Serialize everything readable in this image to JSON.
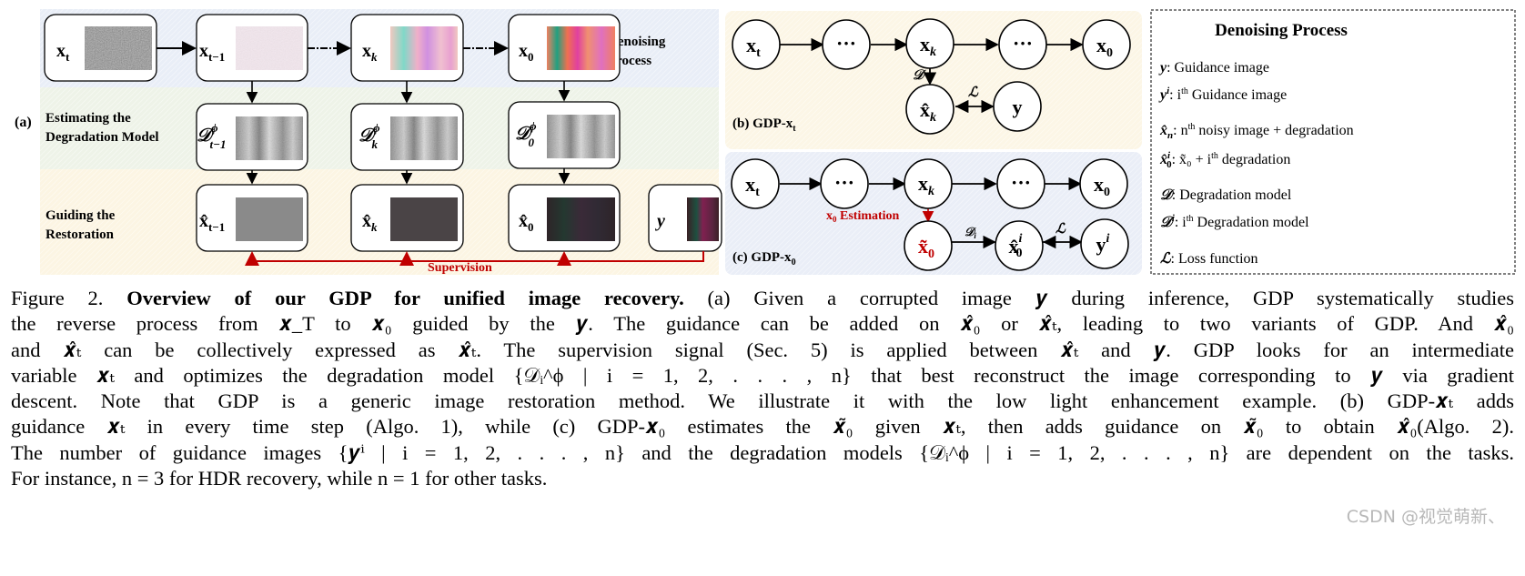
{
  "figure": {
    "panel_a": {
      "tag": "(a)",
      "row_labels": {
        "estimating": [
          "Estimating the",
          "Degradation Model"
        ],
        "guiding": [
          "Guiding the",
          "Restoration"
        ],
        "denoising": [
          "Denoising",
          "Process"
        ]
      },
      "top_row": [
        {
          "base": "x",
          "sub": "t"
        },
        {
          "base": "x",
          "sub": "t−1"
        },
        {
          "base": "x",
          "sub": "k"
        },
        {
          "base": "x",
          "sub": "0"
        }
      ],
      "middle_row": [
        {
          "base": "𝒟",
          "sup": "ϕ",
          "sub": "t−1"
        },
        {
          "base": "𝒟",
          "sup": "ϕ",
          "sub": "k"
        },
        {
          "base": "𝒟",
          "sup": "ϕ",
          "sub": "0"
        }
      ],
      "bottom_row": [
        {
          "base": "x̂",
          "sub": "t−1"
        },
        {
          "base": "x̂",
          "sub": "k"
        },
        {
          "base": "x̂",
          "sub": "0"
        },
        {
          "base": "y",
          "sub": ""
        }
      ],
      "supervision_label": "Supervision",
      "colors": {
        "supervision": "#c00000",
        "band_top": "#eef2f8",
        "band_mid": "#f1f5ec",
        "band_bottom": "#fdf7e8"
      }
    },
    "panel_b": {
      "tag": "(b) GDP-x",
      "tag_sub": "t",
      "nodes": [
        {
          "base": "x",
          "sub": "t"
        },
        {
          "base": "···",
          "sub": ""
        },
        {
          "base": "x",
          "sub": "k"
        },
        {
          "base": "···",
          "sub": ""
        },
        {
          "base": "x",
          "sub": "0"
        },
        {
          "base": "x̂",
          "sub": "k"
        },
        {
          "base": "y",
          "sub": ""
        }
      ],
      "edge_labels": {
        "degradation": "𝒟",
        "loss": "ℒ"
      }
    },
    "panel_c": {
      "tag": "(c) GDP-x",
      "tag_sub": "0",
      "nodes": [
        {
          "base": "x",
          "sub": "t"
        },
        {
          "base": "···",
          "sub": ""
        },
        {
          "base": "x",
          "sub": "k"
        },
        {
          "base": "···",
          "sub": ""
        },
        {
          "base": "x",
          "sub": "0"
        },
        {
          "base": "x̃",
          "sub": "0"
        },
        {
          "base": "x̂",
          "sub": "0",
          "sup": "i"
        },
        {
          "base": "y",
          "sup": "i"
        }
      ],
      "estimation_label": {
        "base": "x",
        "sub": "0",
        "rest": " Estimation"
      },
      "edge_labels": {
        "degradation": "𝒟",
        "degradation_sub": "i",
        "loss": "ℒ"
      },
      "colors": {
        "estimation": "#c00000"
      }
    },
    "legend": {
      "title": "Denoising Process",
      "items": [
        {
          "sym": "y",
          "sup": "",
          "sub": "",
          "text": ": Guidance image"
        },
        {
          "sym": "y",
          "sup": "i",
          "sub": "",
          "text": ": i",
          "text_sup": "th",
          "text2": " Guidance image"
        },
        {
          "sym": "x̂",
          "sup": "",
          "sub": "n",
          "text": ": n",
          "text_sup": "th",
          "text2": " noisy image + degradation"
        },
        {
          "sym": "x̂",
          "sup": "i",
          "sub": "0",
          "text": ": x̃₀ + i",
          "text_sup": "th",
          "text2": "  degradation"
        },
        {
          "sym": "𝒟",
          "sup": "",
          "sub": "",
          "text": ": Degradation model"
        },
        {
          "sym": "𝒟",
          "sup": "i",
          "sub": "",
          "text": ": i",
          "text_sup": "th",
          "text2": " Degradation model"
        },
        {
          "sym": "ℒ",
          "sup": "",
          "sub": "",
          "text": ": Loss function"
        }
      ]
    }
  },
  "caption": {
    "label": "Figure 2.",
    "title": "Overview of our GDP for unified image recovery.",
    "first_line_rest": "(a) Given a corrupted image 𝒚 during inference, GDP systematically studies",
    "lines": [
      "the reverse process from 𝒙_T to 𝒙₀ guided by the 𝒚.  The guidance can be added on 𝒙̂₀ or 𝒙̂ₜ, leading to two variants of GDP. And 𝒙̂₀",
      "and 𝒙̂ₜ can be collectively expressed as 𝒙̂ₜ. The supervision signal (Sec. 5) is applied between 𝒙̂ₜ and 𝒚. GDP looks for an intermediate",
      "variable 𝒙ₜ and optimizes the degradation model {𝒟ᵢ^ϕ | i = 1, 2, . . . , n} that best reconstruct the image corresponding to 𝒚 via gradient",
      "descent. Note that GDP is a generic image restoration method. We illustrate it with the low light enhancement example. (b) GDP-𝒙ₜ adds",
      "guidance 𝒙ₜ in every time step (Algo. 1), while (c) GDP-𝒙₀ estimates the 𝒙̃₀ given 𝒙ₜ, then adds guidance on 𝒙̃₀ to obtain 𝒙̂₀(Algo. 2).",
      "The number of guidance images {𝒚ⁱ | i = 1, 2, . . . , n} and the degradation models {𝒟ᵢ^ϕ | i = 1, 2, . . . , n} are dependent on the tasks.",
      "For instance, n = 3 for HDR recovery, while n = 1 for other tasks."
    ]
  },
  "watermark": "CSDN @视觉萌新、"
}
